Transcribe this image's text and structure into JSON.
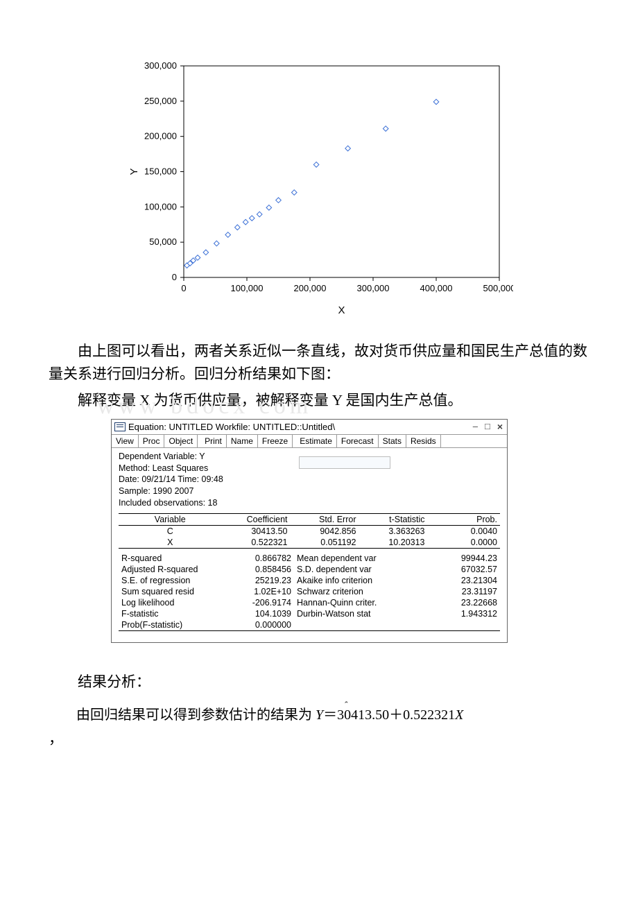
{
  "chart": {
    "type": "scatter",
    "x_label": "X",
    "y_label": "Y",
    "bg_color": "#ffffff",
    "axis_color": "#000000",
    "marker_stroke": "#3a6fd6",
    "marker_fill": "#ffffff",
    "marker_size": 3.8,
    "xlim": [
      0,
      500000
    ],
    "ylim": [
      0,
      300000
    ],
    "x_ticks": [
      0,
      100000,
      200000,
      300000,
      400000,
      500000
    ],
    "y_ticks": [
      0,
      50000,
      100000,
      150000,
      200000,
      250000,
      300000
    ],
    "x_tick_labels": [
      "0",
      "100,000",
      "200,000",
      "300,000",
      "400,000",
      "500,000"
    ],
    "y_tick_labels": [
      "0",
      "50,000",
      "100,000",
      "150,000",
      "200,000",
      "250,000",
      "300,000"
    ],
    "tick_fontsize": 13,
    "axis_title_fontsize": 15,
    "points": [
      [
        5000,
        17000
      ],
      [
        10000,
        20000
      ],
      [
        15000,
        24000
      ],
      [
        22000,
        28000
      ],
      [
        35000,
        35500
      ],
      [
        52000,
        48200
      ],
      [
        70000,
        60500
      ],
      [
        85000,
        71000
      ],
      [
        98000,
        78500
      ],
      [
        108000,
        84000
      ],
      [
        120000,
        89500
      ],
      [
        135000,
        99000
      ],
      [
        150000,
        109500
      ],
      [
        175000,
        120500
      ],
      [
        210000,
        160000
      ],
      [
        260000,
        183000
      ],
      [
        320000,
        211000
      ],
      [
        400000,
        249000
      ]
    ]
  },
  "text": {
    "para1": "由上图可以看出，两者关系近似一条直线，故对货币供应量和国民生产总值的数量关系进行回归分析。回归分析结果如下图：",
    "para2_pre": "解释变量 X 为货币供应量，被解释变量 Y 是国内生产总值。",
    "watermark": "www   bdocx   com",
    "result_label": "结果分析：",
    "eq_prefix": "由回归结果可以得到参数估计的结果为",
    "eq_rhs": "＝30413.50＋0.522321",
    "eq_x": "X",
    "comma": "，"
  },
  "eviews": {
    "title": "Equation: UNTITLED   Workfile: UNTITLED::Untitled\\",
    "win": {
      "min": "–",
      "max": "□",
      "close": "×"
    },
    "toolbar": [
      "View",
      "Proc",
      "Object",
      "Print",
      "Name",
      "Freeze",
      "Estimate",
      "Forecast",
      "Stats",
      "Resids"
    ],
    "header": [
      "Dependent Variable: Y",
      "Method: Least Squares",
      "Date: 09/21/14   Time: 09:48",
      "Sample: 1990 2007",
      "Included observations: 18"
    ],
    "cols": [
      "Variable",
      "Coefficient",
      "Std. Error",
      "t-Statistic",
      "Prob."
    ],
    "coef_rows": [
      {
        "var": "C",
        "coef": "30413.50",
        "se": "9042.856",
        "t": "3.363263",
        "p": "0.0040"
      },
      {
        "var": "X",
        "coef": "0.522321",
        "se": "0.051192",
        "t": "10.20313",
        "p": "0.0000"
      }
    ],
    "stats_left": [
      [
        "R-squared",
        "0.866782"
      ],
      [
        "Adjusted R-squared",
        "0.858456"
      ],
      [
        "S.E. of regression",
        "25219.23"
      ],
      [
        "Sum squared resid",
        "1.02E+10"
      ],
      [
        "Log likelihood",
        "-206.9174"
      ],
      [
        "F-statistic",
        "104.1039"
      ],
      [
        "Prob(F-statistic)",
        "0.000000"
      ]
    ],
    "stats_right": [
      [
        "Mean dependent var",
        "99944.23"
      ],
      [
        "S.D. dependent var",
        "67032.57"
      ],
      [
        "Akaike info criterion",
        "23.21304"
      ],
      [
        "Schwarz criterion",
        "23.31197"
      ],
      [
        "Hannan-Quinn criter.",
        "23.22668"
      ],
      [
        "Durbin-Watson stat",
        "1.943312"
      ]
    ]
  }
}
